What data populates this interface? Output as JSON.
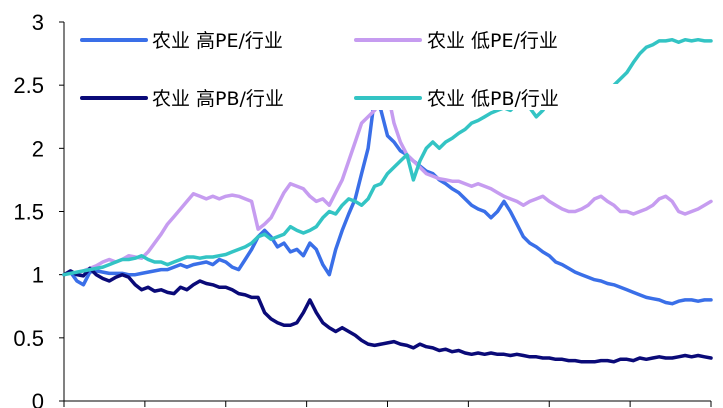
{
  "chart_data": {
    "type": "line",
    "title": "",
    "xlabel": "",
    "ylabel": "",
    "ylim": [
      0,
      3
    ],
    "y_ticks": [
      "0",
      "0.5",
      "1",
      "1.5",
      "2",
      "2.5",
      "3"
    ],
    "x_range": [
      0,
      100
    ],
    "x_tick_count": 9,
    "grid": false,
    "legend": "top",
    "series": [
      {
        "name": "农业 高PE/行业",
        "color": "#3a6fe8",
        "x": [
          0,
          1,
          2,
          3,
          4,
          5,
          6,
          7,
          8,
          9,
          10,
          11,
          12,
          13,
          14,
          15,
          16,
          17,
          18,
          19,
          20,
          21,
          22,
          23,
          24,
          25,
          26,
          27,
          28,
          29,
          30,
          31,
          32,
          33,
          34,
          35,
          36,
          37,
          38,
          39,
          40,
          41,
          42,
          43,
          44,
          45,
          46,
          47,
          48,
          49,
          50,
          51,
          52,
          53,
          54,
          55,
          56,
          57,
          58,
          59,
          60,
          61,
          62,
          63,
          64,
          65,
          66,
          67,
          68,
          69,
          70,
          71,
          72,
          73,
          74,
          75,
          76,
          77,
          78,
          79,
          80,
          81,
          82,
          83,
          84,
          85,
          86,
          87,
          88,
          89,
          90,
          91,
          92,
          93,
          94,
          95,
          96,
          97,
          98,
          99,
          100
        ],
        "y": [
          1.0,
          1.02,
          0.95,
          0.92,
          1.02,
          1.03,
          1.02,
          1.01,
          1.01,
          1.01,
          1.0,
          1.0,
          1.01,
          1.02,
          1.03,
          1.04,
          1.04,
          1.06,
          1.08,
          1.06,
          1.08,
          1.09,
          1.1,
          1.08,
          1.12,
          1.1,
          1.06,
          1.04,
          1.12,
          1.2,
          1.3,
          1.35,
          1.3,
          1.22,
          1.25,
          1.18,
          1.2,
          1.15,
          1.25,
          1.2,
          1.08,
          1.0,
          1.2,
          1.35,
          1.48,
          1.6,
          1.8,
          2.0,
          2.4,
          2.3,
          2.1,
          2.05,
          1.98,
          1.95,
          1.9,
          1.86,
          1.82,
          1.8,
          1.75,
          1.72,
          1.68,
          1.65,
          1.6,
          1.55,
          1.52,
          1.5,
          1.45,
          1.5,
          1.58,
          1.5,
          1.4,
          1.3,
          1.25,
          1.22,
          1.18,
          1.15,
          1.1,
          1.08,
          1.05,
          1.02,
          1.0,
          0.98,
          0.96,
          0.95,
          0.93,
          0.92,
          0.9,
          0.88,
          0.86,
          0.84,
          0.82,
          0.81,
          0.8,
          0.78,
          0.77,
          0.79,
          0.8,
          0.8,
          0.79,
          0.8,
          0.8
        ]
      },
      {
        "name": "农业 低PE/行业",
        "color": "#c69cf0",
        "x": [
          0,
          1,
          2,
          3,
          4,
          5,
          6,
          7,
          8,
          9,
          10,
          11,
          12,
          13,
          14,
          15,
          16,
          17,
          18,
          19,
          20,
          21,
          22,
          23,
          24,
          25,
          26,
          27,
          28,
          29,
          30,
          31,
          32,
          33,
          34,
          35,
          36,
          37,
          38,
          39,
          40,
          41,
          42,
          43,
          44,
          45,
          46,
          47,
          48,
          49,
          50,
          51,
          52,
          53,
          54,
          55,
          56,
          57,
          58,
          59,
          60,
          61,
          62,
          63,
          64,
          65,
          66,
          67,
          68,
          69,
          70,
          71,
          72,
          73,
          74,
          75,
          76,
          77,
          78,
          79,
          80,
          81,
          82,
          83,
          84,
          85,
          86,
          87,
          88,
          89,
          90,
          91,
          92,
          93,
          94,
          95,
          96,
          97,
          98,
          99,
          100
        ],
        "y": [
          1.0,
          1.02,
          1.01,
          1.03,
          1.05,
          1.07,
          1.1,
          1.12,
          1.1,
          1.12,
          1.15,
          1.14,
          1.13,
          1.18,
          1.25,
          1.32,
          1.4,
          1.46,
          1.52,
          1.58,
          1.64,
          1.62,
          1.6,
          1.62,
          1.6,
          1.62,
          1.63,
          1.62,
          1.6,
          1.58,
          1.36,
          1.4,
          1.45,
          1.55,
          1.65,
          1.72,
          1.7,
          1.68,
          1.62,
          1.58,
          1.6,
          1.55,
          1.65,
          1.75,
          1.9,
          2.05,
          2.2,
          2.25,
          2.3,
          2.38,
          2.45,
          2.2,
          2.05,
          1.95,
          1.9,
          1.85,
          1.8,
          1.78,
          1.76,
          1.75,
          1.74,
          1.74,
          1.72,
          1.7,
          1.72,
          1.7,
          1.68,
          1.65,
          1.62,
          1.6,
          1.58,
          1.55,
          1.58,
          1.6,
          1.62,
          1.58,
          1.55,
          1.52,
          1.5,
          1.5,
          1.52,
          1.55,
          1.6,
          1.62,
          1.58,
          1.55,
          1.5,
          1.5,
          1.48,
          1.5,
          1.52,
          1.55,
          1.6,
          1.62,
          1.58,
          1.5,
          1.48,
          1.5,
          1.52,
          1.55,
          1.58
        ]
      },
      {
        "name": "农业 高PB/行业",
        "color": "#0a0a78",
        "x": [
          0,
          1,
          2,
          3,
          4,
          5,
          6,
          7,
          8,
          9,
          10,
          11,
          12,
          13,
          14,
          15,
          16,
          17,
          18,
          19,
          20,
          21,
          22,
          23,
          24,
          25,
          26,
          27,
          28,
          29,
          30,
          31,
          32,
          33,
          34,
          35,
          36,
          37,
          38,
          39,
          40,
          41,
          42,
          43,
          44,
          45,
          46,
          47,
          48,
          49,
          50,
          51,
          52,
          53,
          54,
          55,
          56,
          57,
          58,
          59,
          60,
          61,
          62,
          63,
          64,
          65,
          66,
          67,
          68,
          69,
          70,
          71,
          72,
          73,
          74,
          75,
          76,
          77,
          78,
          79,
          80,
          81,
          82,
          83,
          84,
          85,
          86,
          87,
          88,
          89,
          90,
          91,
          92,
          93,
          94,
          95,
          96,
          97,
          98,
          99,
          100
        ],
        "y": [
          1.0,
          1.03,
          1.0,
          0.99,
          1.05,
          1.0,
          0.97,
          0.95,
          0.98,
          1.0,
          0.98,
          0.92,
          0.88,
          0.9,
          0.87,
          0.88,
          0.86,
          0.85,
          0.9,
          0.88,
          0.92,
          0.95,
          0.93,
          0.92,
          0.9,
          0.9,
          0.88,
          0.85,
          0.84,
          0.82,
          0.82,
          0.7,
          0.65,
          0.62,
          0.6,
          0.6,
          0.62,
          0.7,
          0.8,
          0.7,
          0.62,
          0.58,
          0.55,
          0.58,
          0.55,
          0.52,
          0.48,
          0.45,
          0.44,
          0.45,
          0.46,
          0.47,
          0.45,
          0.44,
          0.42,
          0.45,
          0.43,
          0.42,
          0.4,
          0.41,
          0.39,
          0.4,
          0.38,
          0.37,
          0.38,
          0.37,
          0.38,
          0.37,
          0.37,
          0.36,
          0.37,
          0.36,
          0.35,
          0.35,
          0.34,
          0.34,
          0.33,
          0.33,
          0.32,
          0.32,
          0.31,
          0.31,
          0.31,
          0.32,
          0.32,
          0.31,
          0.33,
          0.33,
          0.32,
          0.34,
          0.33,
          0.34,
          0.35,
          0.34,
          0.34,
          0.35,
          0.36,
          0.35,
          0.36,
          0.35,
          0.34
        ]
      },
      {
        "name": "农业 低PB/行业",
        "color": "#33c4c4",
        "x": [
          0,
          1,
          2,
          3,
          4,
          5,
          6,
          7,
          8,
          9,
          10,
          11,
          12,
          13,
          14,
          15,
          16,
          17,
          18,
          19,
          20,
          21,
          22,
          23,
          24,
          25,
          26,
          27,
          28,
          29,
          30,
          31,
          32,
          33,
          34,
          35,
          36,
          37,
          38,
          39,
          40,
          41,
          42,
          43,
          44,
          45,
          46,
          47,
          48,
          49,
          50,
          51,
          52,
          53,
          54,
          55,
          56,
          57,
          58,
          59,
          60,
          61,
          62,
          63,
          64,
          65,
          66,
          67,
          68,
          69,
          70,
          71,
          72,
          73,
          74,
          75,
          76,
          77,
          78,
          79,
          80,
          81,
          82,
          83,
          84,
          85,
          86,
          87,
          88,
          89,
          90,
          91,
          92,
          93,
          94,
          95,
          96,
          97,
          98,
          99,
          100
        ],
        "y": [
          1.0,
          1.01,
          1.02,
          1.03,
          1.04,
          1.05,
          1.06,
          1.08,
          1.1,
          1.12,
          1.12,
          1.13,
          1.15,
          1.12,
          1.1,
          1.1,
          1.08,
          1.1,
          1.12,
          1.14,
          1.14,
          1.13,
          1.14,
          1.14,
          1.15,
          1.16,
          1.18,
          1.2,
          1.22,
          1.25,
          1.3,
          1.32,
          1.28,
          1.3,
          1.32,
          1.38,
          1.35,
          1.33,
          1.35,
          1.38,
          1.45,
          1.5,
          1.48,
          1.55,
          1.6,
          1.58,
          1.55,
          1.6,
          1.7,
          1.72,
          1.8,
          1.85,
          1.9,
          1.95,
          1.75,
          1.9,
          2.0,
          2.05,
          2.0,
          2.05,
          2.08,
          2.12,
          2.15,
          2.2,
          2.22,
          2.25,
          2.28,
          2.3,
          2.32,
          2.3,
          2.35,
          2.4,
          2.32,
          2.25,
          2.3,
          2.38,
          2.42,
          2.4,
          2.45,
          2.4,
          2.38,
          2.35,
          2.35,
          2.4,
          2.45,
          2.5,
          2.55,
          2.6,
          2.68,
          2.75,
          2.8,
          2.82,
          2.85,
          2.85,
          2.86,
          2.84,
          2.86,
          2.85,
          2.86,
          2.85,
          2.85
        ]
      }
    ]
  }
}
